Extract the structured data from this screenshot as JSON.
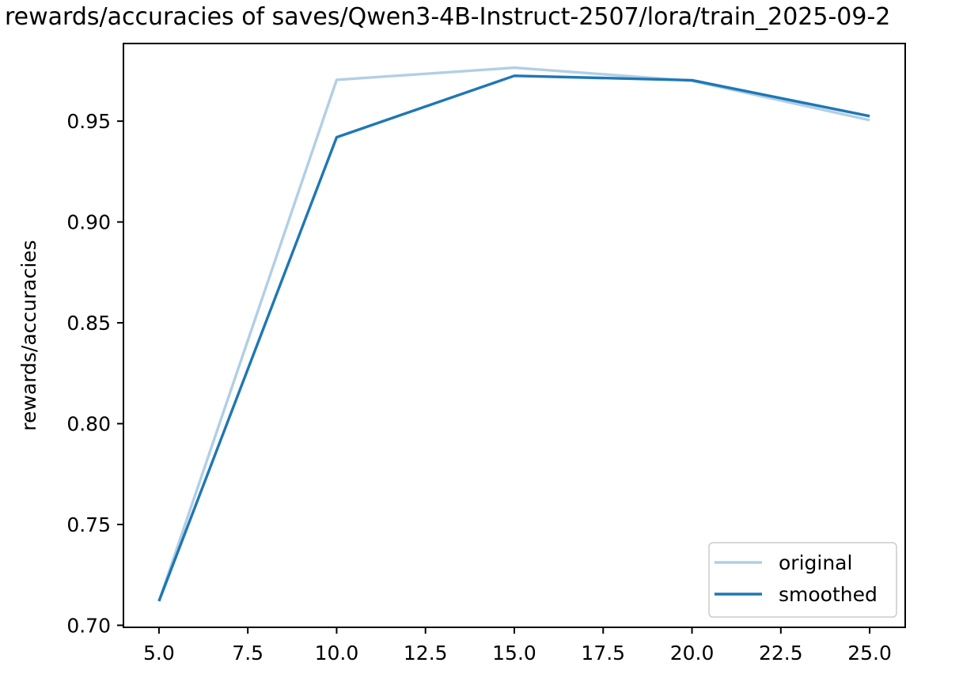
{
  "title": "rewards/accuracies of saves/Qwen3-4B-Instruct-2507/lora/train_2025-09-2",
  "colors": {
    "original_line": "#b1cfe5",
    "smoothed_line": "#1f77b4",
    "spine": "#000000",
    "text": "#000000",
    "legend_border": "#cccccc",
    "background": "#ffffff"
  },
  "chart_data": {
    "type": "line",
    "title": "rewards/accuracies of saves/Qwen3-4B-Instruct-2507/lora/train_2025-09-2",
    "xlabel": "",
    "ylabel": "rewards/accuracies",
    "x": [
      5,
      10,
      15,
      20,
      25
    ],
    "series": [
      {
        "name": "original",
        "color": "#b1cfe5",
        "values": [
          0.712,
          0.9705,
          0.9765,
          0.97,
          0.9505
        ]
      },
      {
        "name": "smoothed",
        "color": "#1f77b4",
        "values": [
          0.712,
          0.942,
          0.9725,
          0.9703,
          0.9525
        ]
      }
    ],
    "xlim": [
      4.0,
      26.0
    ],
    "ylim": [
      0.699,
      0.9885
    ],
    "xticks": [
      5.0,
      7.5,
      10.0,
      12.5,
      15.0,
      17.5,
      20.0,
      22.5,
      25.0
    ],
    "xtick_labels": [
      "5.0",
      "7.5",
      "10.0",
      "12.5",
      "15.0",
      "17.5",
      "20.0",
      "22.5",
      "25.0"
    ],
    "yticks": [
      0.7,
      0.75,
      0.8,
      0.85,
      0.9,
      0.95
    ],
    "ytick_labels": [
      "0.70",
      "0.75",
      "0.80",
      "0.85",
      "0.90",
      "0.95"
    ],
    "grid": false,
    "legend_position": "lower right",
    "legend": [
      "original",
      "smoothed"
    ]
  }
}
